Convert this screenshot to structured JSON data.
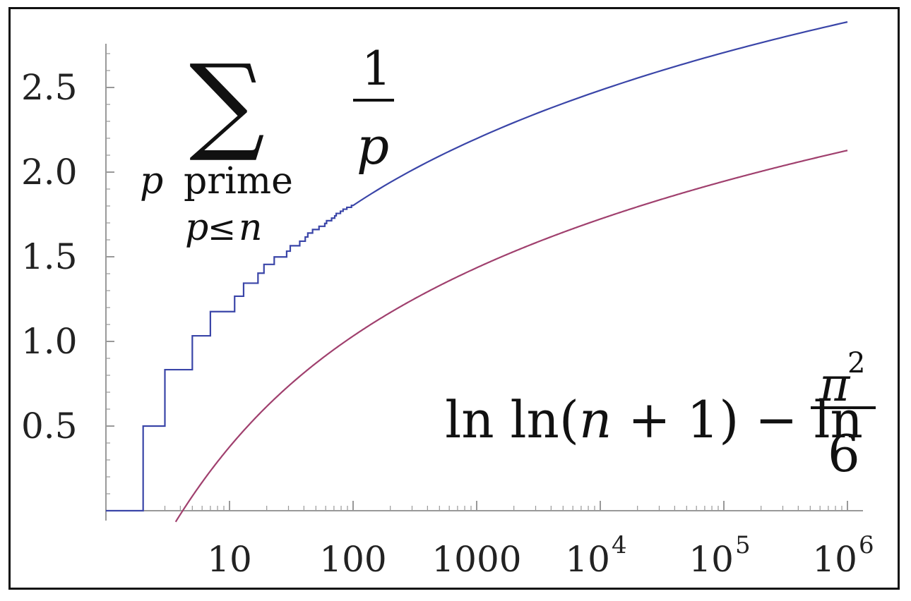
{
  "chart_data": {
    "type": "line",
    "x_scale": "log",
    "xlim": [
      1,
      1000000
    ],
    "ylim": [
      0,
      2.8
    ],
    "grid": false,
    "x_ticks": [
      {
        "value": 10,
        "base": "10",
        "exp": ""
      },
      {
        "value": 100,
        "base": "100",
        "exp": ""
      },
      {
        "value": 1000,
        "base": "1000",
        "exp": ""
      },
      {
        "value": 10000,
        "base": "10",
        "exp": "4"
      },
      {
        "value": 100000,
        "base": "10",
        "exp": "5"
      },
      {
        "value": 1000000,
        "base": "10",
        "exp": "6"
      }
    ],
    "y_ticks": [
      {
        "value": 0.5,
        "label": "0.5"
      },
      {
        "value": 1.0,
        "label": "1.0"
      },
      {
        "value": 1.5,
        "label": "1.5"
      },
      {
        "value": 2.0,
        "label": "2.0"
      },
      {
        "value": 2.5,
        "label": "2.5"
      }
    ],
    "series": [
      {
        "color": "#3a45a8",
        "kind": "step",
        "points": [
          [
            1,
            0
          ],
          [
            2,
            0.5
          ],
          [
            3,
            0.833
          ],
          [
            5,
            1.033
          ],
          [
            7,
            1.176
          ],
          [
            11,
            1.267
          ],
          [
            13,
            1.344
          ],
          [
            17,
            1.403
          ],
          [
            19,
            1.455
          ],
          [
            23,
            1.499
          ],
          [
            29,
            1.533
          ],
          [
            31,
            1.565
          ],
          [
            37,
            1.592
          ],
          [
            41,
            1.617
          ],
          [
            43,
            1.64
          ],
          [
            47,
            1.661
          ],
          [
            53,
            1.68
          ],
          [
            59,
            1.697
          ],
          [
            61,
            1.713
          ],
          [
            67,
            1.728
          ],
          [
            71,
            1.742
          ],
          [
            73,
            1.756
          ],
          [
            79,
            1.769
          ],
          [
            83,
            1.781
          ],
          [
            89,
            1.792
          ],
          [
            97,
            1.803
          ],
          [
            100,
            1.803
          ],
          [
            1000,
            2.198
          ],
          [
            10000,
            2.483
          ],
          [
            100000,
            2.706
          ],
          [
            1000000,
            2.887
          ]
        ]
      },
      {
        "color": "#a0406e",
        "kind": "smooth",
        "formula": "ln(ln(n+1)) - ln(pi^2/6)"
      }
    ],
    "annotations": {
      "sum_label": {
        "symbol": "∑",
        "numerator": "1",
        "denominator": "p",
        "cond_var": "p",
        "cond_word": "prime",
        "cond_line2_a": "p",
        "cond_line2_op": "≤",
        "cond_line2_b": "n"
      },
      "formula_label": {
        "part1": "ln ln(",
        "var": "n",
        "part2": " + 1) − ln",
        "numerator_base": "π",
        "numerator_exp": "2",
        "denominator": "6"
      }
    }
  }
}
